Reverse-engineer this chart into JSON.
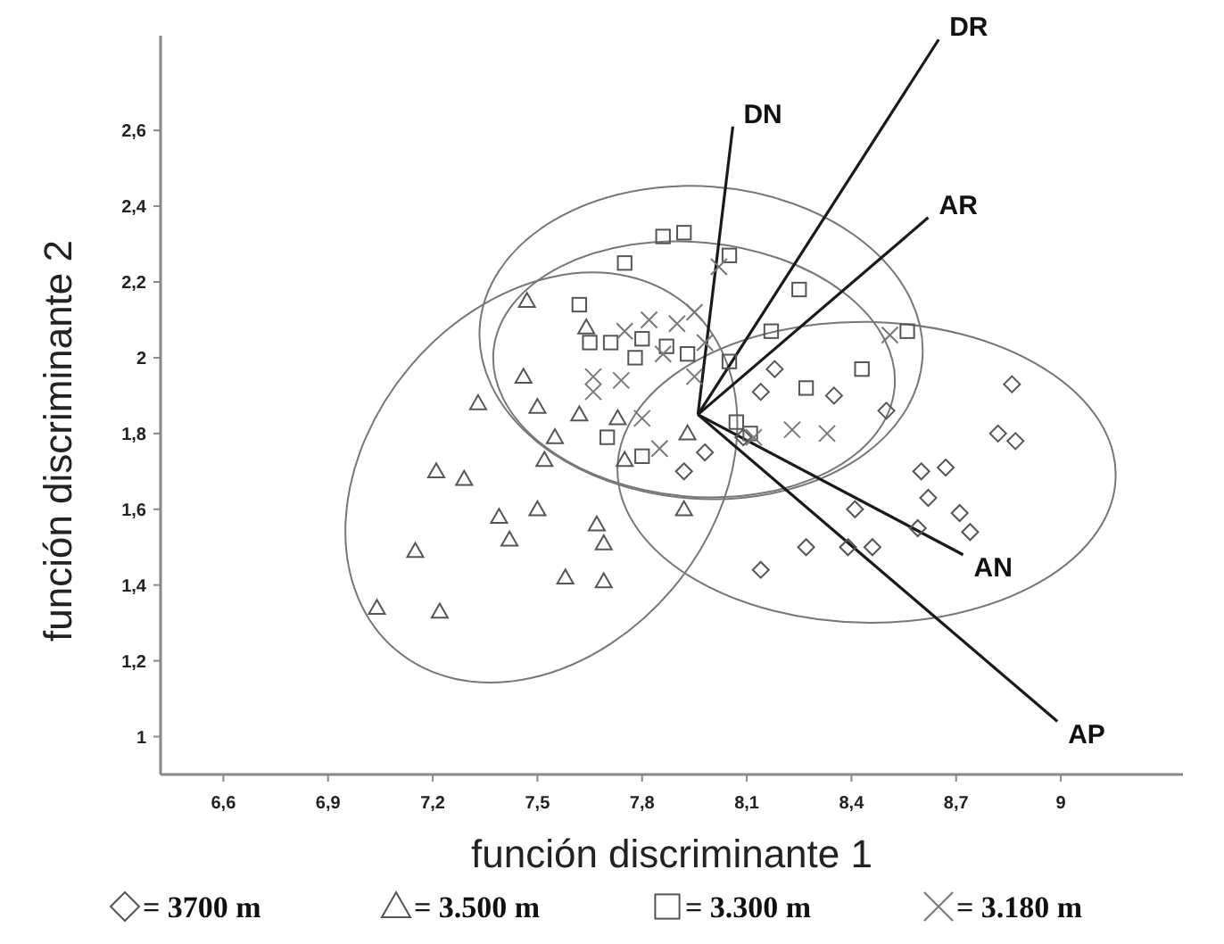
{
  "chart_data": {
    "type": "scatter",
    "xlabel": "función discriminante 1",
    "ylabel": "función discriminante 2",
    "xlim": [
      6.42,
      9.35
    ],
    "ylim": [
      0.9,
      2.85
    ],
    "xticks": [
      {
        "value": 6.6,
        "label": "6,6"
      },
      {
        "value": 6.9,
        "label": "6,9"
      },
      {
        "value": 7.2,
        "label": "7,2"
      },
      {
        "value": 7.5,
        "label": "7,5"
      },
      {
        "value": 7.8,
        "label": "7,8"
      },
      {
        "value": 8.1,
        "label": "8,1"
      },
      {
        "value": 8.4,
        "label": "8,4"
      },
      {
        "value": 8.7,
        "label": "8,7"
      },
      9
    ],
    "yticks": [
      1,
      {
        "value": 1.2,
        "label": "1,2"
      },
      {
        "value": 1.4,
        "label": "1,4"
      },
      {
        "value": 1.6,
        "label": "1,6"
      },
      {
        "value": 1.8,
        "label": "1,8"
      },
      2,
      {
        "value": 2.2,
        "label": "2,2"
      },
      {
        "value": 2.4,
        "label": "2,4"
      },
      {
        "value": 2.6,
        "label": "2,6"
      }
    ],
    "grid": false,
    "legend": "bottom",
    "series": [
      {
        "name": "= 3700 m",
        "marker": "diamond",
        "color": "#555555",
        "x": [
          8.18,
          8.14,
          8.35,
          8.5,
          8.86,
          8.82,
          8.87,
          8.6,
          8.67,
          8.62,
          8.71,
          8.74,
          8.59,
          8.41,
          8.27,
          8.39,
          8.46,
          8.14,
          7.92,
          7.98,
          8.09
        ],
        "values": [
          1.97,
          1.91,
          1.9,
          1.86,
          1.93,
          1.8,
          1.78,
          1.7,
          1.71,
          1.63,
          1.59,
          1.54,
          1.55,
          1.6,
          1.5,
          1.5,
          1.5,
          1.44,
          1.7,
          1.75,
          1.79
        ]
      },
      {
        "name": "= 3.500 m",
        "marker": "triangle",
        "color": "#555555",
        "x": [
          7.47,
          7.46,
          7.33,
          7.5,
          7.62,
          7.55,
          7.52,
          7.73,
          7.21,
          7.29,
          7.39,
          7.5,
          7.42,
          7.15,
          7.04,
          7.22,
          7.58,
          7.69,
          7.67,
          7.69,
          7.75,
          7.93,
          7.92,
          7.64
        ],
        "values": [
          2.15,
          1.95,
          1.88,
          1.87,
          1.85,
          1.79,
          1.73,
          1.84,
          1.7,
          1.68,
          1.58,
          1.6,
          1.52,
          1.49,
          1.34,
          1.33,
          1.42,
          1.41,
          1.56,
          1.51,
          1.73,
          1.8,
          1.6,
          2.08
        ]
      },
      {
        "name": "= 3.300 m",
        "marker": "square",
        "color": "#555555",
        "x": [
          7.92,
          7.86,
          8.05,
          7.75,
          7.62,
          7.65,
          7.71,
          7.8,
          7.87,
          7.78,
          7.93,
          8.05,
          8.17,
          8.25,
          8.43,
          8.27,
          8.56,
          8.07,
          8.11,
          7.7,
          7.8
        ],
        "values": [
          2.33,
          2.32,
          2.27,
          2.25,
          2.14,
          2.04,
          2.04,
          2.05,
          2.03,
          2.0,
          2.01,
          1.99,
          2.07,
          2.18,
          1.97,
          1.92,
          2.07,
          1.83,
          1.8,
          1.79,
          1.74
        ]
      },
      {
        "name": "= 3.180 m",
        "marker": "cross",
        "color": "#777777",
        "x": [
          8.02,
          7.95,
          7.9,
          7.82,
          7.75,
          7.66,
          7.66,
          7.74,
          7.8,
          7.86,
          7.95,
          7.98,
          7.85,
          8.23,
          8.33,
          8.51,
          8.12
        ],
        "values": [
          2.24,
          2.12,
          2.09,
          2.1,
          2.07,
          1.95,
          1.91,
          1.94,
          1.84,
          2.01,
          1.95,
          2.04,
          1.76,
          1.81,
          1.8,
          2.06,
          1.79
        ]
      },
      {
        "name": "DN",
        "type": "line",
        "marker": "none",
        "color": "#1a1a1a",
        "x": [
          7.96,
          8.06
        ],
        "values": [
          1.85,
          2.61
        ]
      },
      {
        "name": "DR",
        "type": "line",
        "marker": "none",
        "color": "#1a1a1a",
        "x": [
          7.96,
          8.65
        ],
        "values": [
          1.85,
          2.84
        ]
      },
      {
        "name": "AR",
        "type": "line",
        "marker": "none",
        "color": "#1a1a1a",
        "x": [
          7.96,
          8.62
        ],
        "values": [
          1.85,
          2.37
        ]
      },
      {
        "name": "AN",
        "type": "line",
        "marker": "none",
        "color": "#1a1a1a",
        "x": [
          7.96,
          8.72
        ],
        "values": [
          1.85,
          1.48
        ]
      },
      {
        "name": "AP",
        "type": "line",
        "marker": "none",
        "color": "#1a1a1a",
        "x": [
          7.96,
          8.99
        ],
        "values": [
          1.85,
          1.04
        ]
      }
    ]
  }
}
